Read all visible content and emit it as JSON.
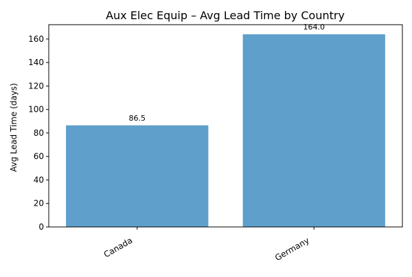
{
  "chart_data": {
    "type": "bar",
    "title": "Aux Elec Equip – Avg Lead Time by Country",
    "xlabel": "",
    "ylabel": "Avg Lead Time (days)",
    "categories": [
      "Canada",
      "Germany"
    ],
    "values": [
      86.5,
      164.0
    ],
    "value_labels": [
      "86.5",
      "164.0"
    ],
    "ylim": [
      0,
      172.2
    ],
    "yticks": [
      0,
      20,
      40,
      60,
      80,
      100,
      120,
      140,
      160
    ],
    "bar_color": "#5f9fcb",
    "grid": false,
    "legend": "none"
  }
}
